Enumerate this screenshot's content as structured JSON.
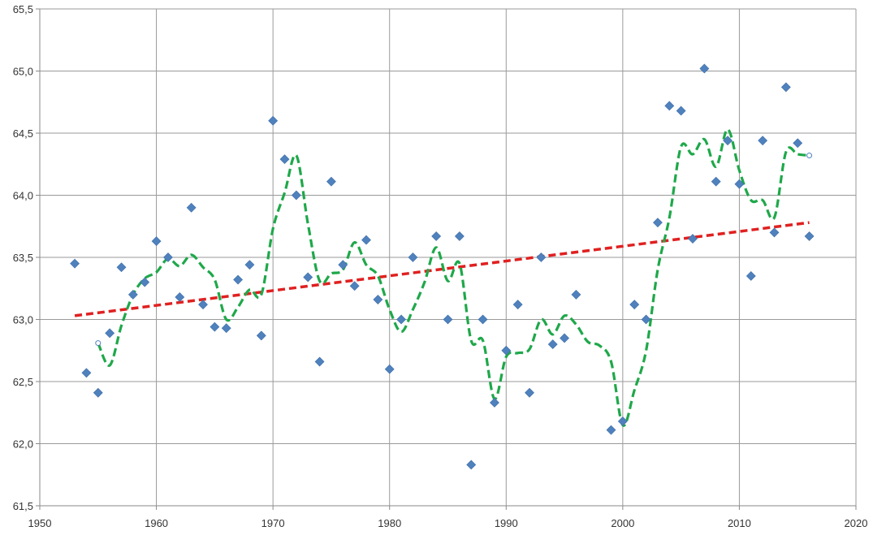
{
  "chart_data": {
    "type": "scatter",
    "title": "",
    "xlabel": "",
    "ylabel": "",
    "xlim": [
      1950,
      2020
    ],
    "ylim": [
      61.5,
      65.5
    ],
    "grid": true,
    "legend": "none",
    "x_ticks": [
      1950,
      1960,
      1970,
      1980,
      1990,
      2000,
      2010,
      2020
    ],
    "y_ticks": [
      61.5,
      62.0,
      62.5,
      63.0,
      63.5,
      64.0,
      64.5,
      65.0,
      65.5
    ],
    "x_tick_labels": [
      "1950",
      "1960",
      "1970",
      "1980",
      "1990",
      "2000",
      "2010",
      "2020"
    ],
    "y_tick_labels": [
      "61,5",
      "62,0",
      "62,5",
      "63,0",
      "63,5",
      "64,0",
      "64,5",
      "65,0",
      "65,5"
    ],
    "colors": {
      "points": "#4f81bd",
      "trend": "#e02020",
      "moving_average": "#1fa84a",
      "grid": "#9a9a9a",
      "tick_text": "#333333"
    },
    "series": [
      {
        "kind": "scatter",
        "marker": "diamond",
        "x": [
          1953,
          1954,
          1955,
          1956,
          1957,
          1958,
          1959,
          1960,
          1961,
          1962,
          1963,
          1964,
          1965,
          1966,
          1967,
          1968,
          1969,
          1970,
          1971,
          1972,
          1973,
          1974,
          1975,
          1976,
          1977,
          1978,
          1979,
          1980,
          1981,
          1982,
          1984,
          1985,
          1986,
          1987,
          1988,
          1989,
          1990,
          1991,
          1992,
          1993,
          1994,
          1995,
          1996,
          1999,
          2000,
          2001,
          2002,
          2003,
          2004,
          2005,
          2006,
          2007,
          2008,
          2009,
          2010,
          2011,
          2012,
          2013,
          2014,
          2015,
          2016
        ],
        "y": [
          63.45,
          62.57,
          62.41,
          62.89,
          63.42,
          63.2,
          63.3,
          63.63,
          63.5,
          63.18,
          63.9,
          63.12,
          62.94,
          62.93,
          63.32,
          63.44,
          62.87,
          64.6,
          64.29,
          64.0,
          63.34,
          62.66,
          64.11,
          63.44,
          63.27,
          63.64,
          63.16,
          62.6,
          63.0,
          63.5,
          63.67,
          63.0,
          63.67,
          61.83,
          63.0,
          62.33,
          62.75,
          63.12,
          62.41,
          63.5,
          62.8,
          62.85,
          63.2,
          62.11,
          62.18,
          63.12,
          63.0,
          63.78,
          64.72,
          64.68,
          63.65,
          65.02,
          64.11,
          64.44,
          64.09,
          63.35,
          64.44,
          63.7,
          64.87,
          64.42,
          63.67
        ]
      },
      {
        "kind": "moving_average",
        "style": "dashed",
        "x": [
          1955,
          1956,
          1957,
          1958,
          1959,
          1960,
          1961,
          1962,
          1963,
          1964,
          1965,
          1966,
          1967,
          1968,
          1969,
          1970,
          1971,
          1972,
          1973,
          1974,
          1975,
          1976,
          1977,
          1978,
          1979,
          1980,
          1981,
          1982,
          1983,
          1984,
          1985,
          1986,
          1987,
          1988,
          1989,
          1990,
          1991,
          1992,
          1993,
          1994,
          1995,
          1996,
          1997,
          1998,
          1999,
          2000,
          2001,
          2002,
          2003,
          2004,
          2005,
          2006,
          2007,
          2008,
          2009,
          2010,
          2011,
          2012,
          2013,
          2014,
          2015,
          2016
        ],
        "y": [
          62.81,
          62.63,
          62.95,
          63.2,
          63.33,
          63.38,
          63.49,
          63.43,
          63.52,
          63.42,
          63.32,
          63.0,
          63.1,
          63.24,
          63.2,
          63.73,
          64.02,
          64.32,
          63.77,
          63.31,
          63.37,
          63.4,
          63.62,
          63.44,
          63.35,
          63.08,
          62.9,
          63.08,
          63.3,
          63.58,
          63.31,
          63.45,
          62.83,
          62.83,
          62.36,
          62.7,
          62.73,
          62.76,
          63.0,
          62.88,
          63.03,
          62.96,
          62.82,
          62.79,
          62.66,
          62.15,
          62.43,
          62.75,
          63.4,
          63.82,
          64.39,
          64.33,
          64.45,
          64.23,
          64.53,
          64.2,
          63.96,
          63.96,
          63.82,
          64.35,
          64.33,
          64.32
        ],
        "endpoints": [
          {
            "x": 1955,
            "y": 62.81
          },
          {
            "x": 2016,
            "y": 64.32
          }
        ]
      },
      {
        "kind": "linear_trend",
        "style": "dashed",
        "x": [
          1953,
          2016
        ],
        "y": [
          63.03,
          63.78
        ]
      }
    ]
  }
}
